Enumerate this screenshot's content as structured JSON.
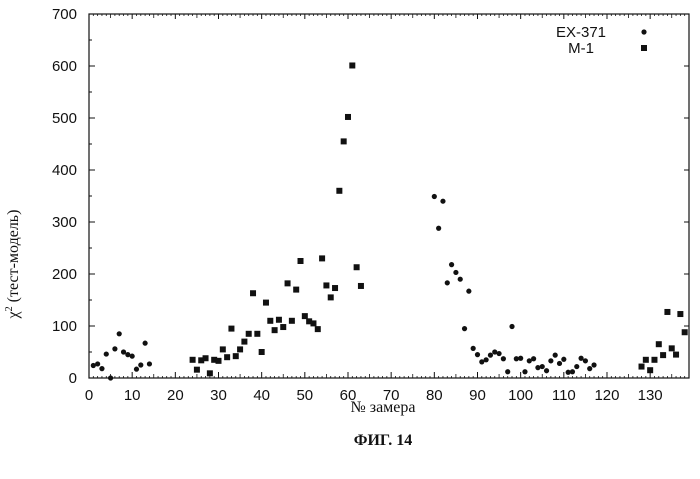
{
  "chart_data": {
    "type": "scatter",
    "title": "",
    "xlabel": "№ замера",
    "ylabel": "χ² (тест-модель)",
    "ylabel_parts": {
      "chi": "χ",
      "sup": "2",
      "rest": " (тест-модель)"
    },
    "caption": "ФИГ. 14",
    "xlim": [
      0,
      139
    ],
    "ylim": [
      0,
      700
    ],
    "xticks": [
      0,
      10,
      20,
      30,
      40,
      50,
      60,
      70,
      80,
      90,
      100,
      110,
      120,
      130
    ],
    "yticks": [
      0,
      100,
      200,
      300,
      400,
      500,
      600,
      700
    ],
    "grid": false,
    "legend_position": "top-right",
    "series": [
      {
        "name": "EX-371",
        "marker": "circle",
        "color": "#111111",
        "points": [
          [
            1,
            24
          ],
          [
            2,
            27
          ],
          [
            3,
            18
          ],
          [
            4,
            46
          ],
          [
            5,
            0
          ],
          [
            6,
            56
          ],
          [
            7,
            85
          ],
          [
            8,
            50
          ],
          [
            9,
            45
          ],
          [
            10,
            42
          ],
          [
            11,
            17
          ],
          [
            12,
            25
          ],
          [
            13,
            67
          ],
          [
            14,
            27
          ],
          [
            80,
            349
          ],
          [
            81,
            288
          ],
          [
            82,
            340
          ],
          [
            83,
            183
          ],
          [
            84,
            218
          ],
          [
            85,
            203
          ],
          [
            86,
            190
          ],
          [
            87,
            95
          ],
          [
            88,
            167
          ],
          [
            89,
            57
          ],
          [
            90,
            45
          ],
          [
            91,
            31
          ],
          [
            92,
            35
          ],
          [
            93,
            44
          ],
          [
            94,
            50
          ],
          [
            95,
            47
          ],
          [
            96,
            37
          ],
          [
            97,
            12
          ],
          [
            98,
            99
          ],
          [
            99,
            37
          ],
          [
            100,
            38
          ],
          [
            101,
            12
          ],
          [
            102,
            33
          ],
          [
            103,
            37
          ],
          [
            104,
            20
          ],
          [
            105,
            22
          ],
          [
            106,
            14
          ],
          [
            107,
            33
          ],
          [
            108,
            44
          ],
          [
            109,
            28
          ],
          [
            110,
            36
          ],
          [
            111,
            11
          ],
          [
            112,
            12
          ],
          [
            113,
            22
          ],
          [
            114,
            38
          ],
          [
            115,
            33
          ],
          [
            116,
            18
          ],
          [
            117,
            25
          ]
        ]
      },
      {
        "name": "M-1",
        "marker": "square",
        "color": "#111111",
        "points": [
          [
            24,
            35
          ],
          [
            25,
            16
          ],
          [
            26,
            34
          ],
          [
            27,
            38
          ],
          [
            28,
            9
          ],
          [
            29,
            35
          ],
          [
            30,
            33
          ],
          [
            31,
            55
          ],
          [
            32,
            40
          ],
          [
            33,
            95
          ],
          [
            34,
            42
          ],
          [
            35,
            55
          ],
          [
            36,
            70
          ],
          [
            37,
            85
          ],
          [
            38,
            163
          ],
          [
            39,
            85
          ],
          [
            40,
            50
          ],
          [
            41,
            145
          ],
          [
            42,
            110
          ],
          [
            43,
            92
          ],
          [
            44,
            112
          ],
          [
            45,
            98
          ],
          [
            46,
            182
          ],
          [
            47,
            110
          ],
          [
            48,
            170
          ],
          [
            49,
            225
          ],
          [
            50,
            119
          ],
          [
            51,
            109
          ],
          [
            52,
            105
          ],
          [
            53,
            94
          ],
          [
            54,
            230
          ],
          [
            55,
            178
          ],
          [
            56,
            155
          ],
          [
            57,
            173
          ],
          [
            58,
            360
          ],
          [
            59,
            455
          ],
          [
            60,
            502
          ],
          [
            61,
            601
          ],
          [
            62,
            213
          ],
          [
            63,
            177
          ],
          [
            128,
            22
          ],
          [
            129,
            35
          ],
          [
            130,
            15
          ],
          [
            131,
            35
          ],
          [
            132,
            65
          ],
          [
            133,
            44
          ],
          [
            134,
            127
          ],
          [
            135,
            57
          ],
          [
            136,
            45
          ],
          [
            137,
            123
          ],
          [
            138,
            88
          ]
        ]
      }
    ]
  }
}
